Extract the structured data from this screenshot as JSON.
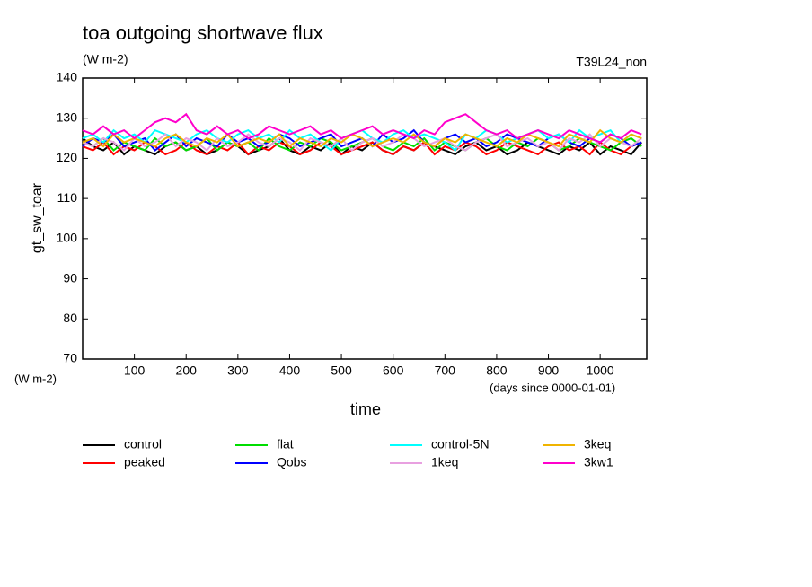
{
  "chart_data": {
    "type": "line",
    "title": "toa outgoing shortwave flux",
    "units_top": "(W m-2)",
    "run_label": "T39L24_non",
    "ylabel": "gt_sw_toar",
    "units_bottom": "(W m-2)",
    "x_units": "(days since 0000-01-01)",
    "xlabel": "time",
    "xlim": [
      0,
      1090
    ],
    "ylim": [
      70,
      140
    ],
    "xticks": [
      100,
      200,
      300,
      400,
      500,
      600,
      700,
      800,
      900,
      1000
    ],
    "yticks": [
      70,
      80,
      90,
      100,
      110,
      120,
      130,
      140
    ],
    "x": [
      0,
      20,
      40,
      60,
      80,
      100,
      120,
      140,
      160,
      180,
      200,
      220,
      240,
      260,
      280,
      300,
      320,
      340,
      360,
      380,
      400,
      420,
      440,
      460,
      480,
      500,
      520,
      540,
      560,
      580,
      600,
      620,
      640,
      660,
      680,
      700,
      720,
      740,
      760,
      780,
      800,
      820,
      840,
      860,
      880,
      900,
      920,
      940,
      960,
      980,
      1000,
      1020,
      1040,
      1060,
      1080
    ],
    "series": [
      {
        "name": "control",
        "color": "#000000",
        "values": [
          125,
          123,
          122,
          124,
          121,
          123,
          122,
          121,
          123,
          124,
          122,
          123,
          121,
          122,
          124,
          123,
          121,
          122,
          123,
          125,
          122,
          121,
          123,
          122,
          124,
          121,
          123,
          122,
          124,
          122,
          121,
          123,
          122,
          124,
          123,
          122,
          121,
          123,
          124,
          122,
          123,
          121,
          122,
          124,
          123,
          122,
          121,
          123,
          122,
          124,
          121,
          123,
          122,
          121,
          124
        ]
      },
      {
        "name": "peaked",
        "color": "#ff0000",
        "values": [
          123,
          122,
          124,
          121,
          123,
          122,
          124,
          123,
          121,
          122,
          124,
          122,
          121,
          123,
          122,
          124,
          121,
          123,
          122,
          124,
          123,
          121,
          122,
          124,
          123,
          121,
          122,
          123,
          124,
          122,
          121,
          123,
          122,
          124,
          121,
          123,
          122,
          124,
          123,
          121,
          122,
          124,
          123,
          122,
          121,
          123,
          124,
          122,
          123,
          121,
          124,
          122,
          121,
          123,
          124
        ]
      },
      {
        "name": "flat",
        "color": "#00dd00",
        "values": [
          124,
          123,
          125,
          122,
          124,
          123,
          122,
          125,
          123,
          124,
          122,
          123,
          125,
          122,
          124,
          123,
          124,
          122,
          125,
          123,
          122,
          124,
          123,
          125,
          124,
          122,
          123,
          124,
          125,
          123,
          122,
          124,
          123,
          125,
          122,
          124,
          123,
          122,
          124,
          125,
          123,
          122,
          124,
          123,
          125,
          124,
          122,
          123,
          125,
          124,
          123,
          122,
          124,
          125,
          123
        ]
      },
      {
        "name": "Qobs",
        "color": "#0000ff",
        "values": [
          123,
          125,
          124,
          126,
          123,
          124,
          125,
          122,
          124,
          126,
          123,
          125,
          124,
          123,
          126,
          124,
          125,
          123,
          124,
          126,
          125,
          123,
          124,
          125,
          126,
          123,
          124,
          125,
          123,
          126,
          124,
          125,
          127,
          124,
          123,
          125,
          126,
          124,
          125,
          123,
          124,
          126,
          125,
          124,
          123,
          125,
          126,
          124,
          123,
          125,
          124,
          126,
          125,
          123,
          124
        ]
      },
      {
        "name": "control-5N",
        "color": "#00ffff",
        "values": [
          125,
          126,
          124,
          127,
          125,
          126,
          124,
          127,
          126,
          125,
          124,
          126,
          127,
          125,
          124,
          126,
          127,
          125,
          126,
          124,
          127,
          125,
          126,
          124,
          122,
          125,
          126,
          127,
          125,
          124,
          126,
          127,
          125,
          126,
          125,
          124,
          122,
          126,
          125,
          127,
          126,
          124,
          125,
          126,
          127,
          125,
          126,
          124,
          127,
          125,
          126,
          127,
          124,
          126,
          125
        ]
      },
      {
        "name": "1keq",
        "color": "#e8a0e0",
        "values": [
          124,
          123,
          125,
          124,
          122,
          125,
          123,
          124,
          126,
          123,
          125,
          124,
          122,
          125,
          123,
          124,
          126,
          124,
          123,
          125,
          124,
          122,
          125,
          124,
          123,
          125,
          122,
          124,
          125,
          123,
          124,
          126,
          125,
          123,
          124,
          125,
          123,
          122,
          124,
          125,
          126,
          123,
          124,
          125,
          123,
          124,
          122,
          125,
          124,
          126,
          123,
          125,
          124,
          123,
          125
        ]
      },
      {
        "name": "3keq",
        "color": "#f0b400",
        "values": [
          124,
          125,
          123,
          126,
          124,
          125,
          124,
          123,
          125,
          126,
          124,
          123,
          125,
          124,
          126,
          123,
          124,
          125,
          124,
          126,
          123,
          125,
          124,
          123,
          125,
          124,
          126,
          125,
          123,
          124,
          125,
          124,
          126,
          124,
          123,
          125,
          124,
          126,
          125,
          124,
          123,
          125,
          124,
          126,
          125,
          124,
          123,
          126,
          125,
          124,
          127,
          125,
          124,
          126,
          125
        ]
      },
      {
        "name": "3kw1",
        "color": "#ff00cc",
        "values": [
          127,
          126,
          128,
          126,
          127,
          125,
          127,
          129,
          130,
          129,
          131,
          127,
          126,
          128,
          126,
          127,
          125,
          126,
          128,
          127,
          126,
          127,
          128,
          126,
          127,
          125,
          126,
          127,
          128,
          126,
          127,
          126,
          125,
          127,
          126,
          129,
          130,
          131,
          129,
          127,
          126,
          127,
          125,
          126,
          127,
          126,
          125,
          127,
          126,
          125,
          124,
          126,
          125,
          127,
          126
        ]
      }
    ]
  }
}
